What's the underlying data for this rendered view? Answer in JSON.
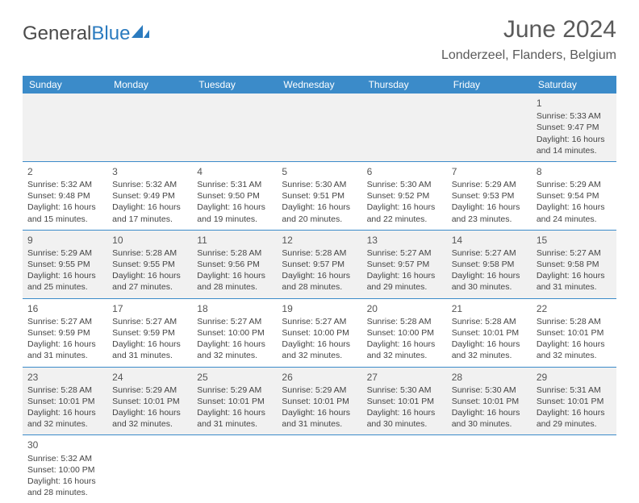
{
  "logo": {
    "text_a": "General",
    "text_b": "Blue"
  },
  "title": "June 2024",
  "location": "Londerzeel, Flanders, Belgium",
  "colors": {
    "header_bg": "#3b8bc9",
    "header_fg": "#ffffff",
    "row_alt_bg": "#f1f1f1",
    "row_border": "#3b8bc9",
    "logo_blue": "#2b7bbf",
    "text": "#444444"
  },
  "day_headers": [
    "Sunday",
    "Monday",
    "Tuesday",
    "Wednesday",
    "Thursday",
    "Friday",
    "Saturday"
  ],
  "weeks": [
    [
      null,
      null,
      null,
      null,
      null,
      null,
      {
        "n": "1",
        "sr": "5:33 AM",
        "ss": "9:47 PM",
        "dl": "16 hours and 14 minutes."
      }
    ],
    [
      {
        "n": "2",
        "sr": "5:32 AM",
        "ss": "9:48 PM",
        "dl": "16 hours and 15 minutes."
      },
      {
        "n": "3",
        "sr": "5:32 AM",
        "ss": "9:49 PM",
        "dl": "16 hours and 17 minutes."
      },
      {
        "n": "4",
        "sr": "5:31 AM",
        "ss": "9:50 PM",
        "dl": "16 hours and 19 minutes."
      },
      {
        "n": "5",
        "sr": "5:30 AM",
        "ss": "9:51 PM",
        "dl": "16 hours and 20 minutes."
      },
      {
        "n": "6",
        "sr": "5:30 AM",
        "ss": "9:52 PM",
        "dl": "16 hours and 22 minutes."
      },
      {
        "n": "7",
        "sr": "5:29 AM",
        "ss": "9:53 PM",
        "dl": "16 hours and 23 minutes."
      },
      {
        "n": "8",
        "sr": "5:29 AM",
        "ss": "9:54 PM",
        "dl": "16 hours and 24 minutes."
      }
    ],
    [
      {
        "n": "9",
        "sr": "5:29 AM",
        "ss": "9:55 PM",
        "dl": "16 hours and 25 minutes."
      },
      {
        "n": "10",
        "sr": "5:28 AM",
        "ss": "9:55 PM",
        "dl": "16 hours and 27 minutes."
      },
      {
        "n": "11",
        "sr": "5:28 AM",
        "ss": "9:56 PM",
        "dl": "16 hours and 28 minutes."
      },
      {
        "n": "12",
        "sr": "5:28 AM",
        "ss": "9:57 PM",
        "dl": "16 hours and 28 minutes."
      },
      {
        "n": "13",
        "sr": "5:27 AM",
        "ss": "9:57 PM",
        "dl": "16 hours and 29 minutes."
      },
      {
        "n": "14",
        "sr": "5:27 AM",
        "ss": "9:58 PM",
        "dl": "16 hours and 30 minutes."
      },
      {
        "n": "15",
        "sr": "5:27 AM",
        "ss": "9:58 PM",
        "dl": "16 hours and 31 minutes."
      }
    ],
    [
      {
        "n": "16",
        "sr": "5:27 AM",
        "ss": "9:59 PM",
        "dl": "16 hours and 31 minutes."
      },
      {
        "n": "17",
        "sr": "5:27 AM",
        "ss": "9:59 PM",
        "dl": "16 hours and 31 minutes."
      },
      {
        "n": "18",
        "sr": "5:27 AM",
        "ss": "10:00 PM",
        "dl": "16 hours and 32 minutes."
      },
      {
        "n": "19",
        "sr": "5:27 AM",
        "ss": "10:00 PM",
        "dl": "16 hours and 32 minutes."
      },
      {
        "n": "20",
        "sr": "5:28 AM",
        "ss": "10:00 PM",
        "dl": "16 hours and 32 minutes."
      },
      {
        "n": "21",
        "sr": "5:28 AM",
        "ss": "10:01 PM",
        "dl": "16 hours and 32 minutes."
      },
      {
        "n": "22",
        "sr": "5:28 AM",
        "ss": "10:01 PM",
        "dl": "16 hours and 32 minutes."
      }
    ],
    [
      {
        "n": "23",
        "sr": "5:28 AM",
        "ss": "10:01 PM",
        "dl": "16 hours and 32 minutes."
      },
      {
        "n": "24",
        "sr": "5:29 AM",
        "ss": "10:01 PM",
        "dl": "16 hours and 32 minutes."
      },
      {
        "n": "25",
        "sr": "5:29 AM",
        "ss": "10:01 PM",
        "dl": "16 hours and 31 minutes."
      },
      {
        "n": "26",
        "sr": "5:29 AM",
        "ss": "10:01 PM",
        "dl": "16 hours and 31 minutes."
      },
      {
        "n": "27",
        "sr": "5:30 AM",
        "ss": "10:01 PM",
        "dl": "16 hours and 30 minutes."
      },
      {
        "n": "28",
        "sr": "5:30 AM",
        "ss": "10:01 PM",
        "dl": "16 hours and 30 minutes."
      },
      {
        "n": "29",
        "sr": "5:31 AM",
        "ss": "10:01 PM",
        "dl": "16 hours and 29 minutes."
      }
    ],
    [
      {
        "n": "30",
        "sr": "5:32 AM",
        "ss": "10:00 PM",
        "dl": "16 hours and 28 minutes."
      },
      null,
      null,
      null,
      null,
      null,
      null
    ]
  ],
  "labels": {
    "sunrise": "Sunrise: ",
    "sunset": "Sunset: ",
    "daylight": "Daylight: "
  }
}
